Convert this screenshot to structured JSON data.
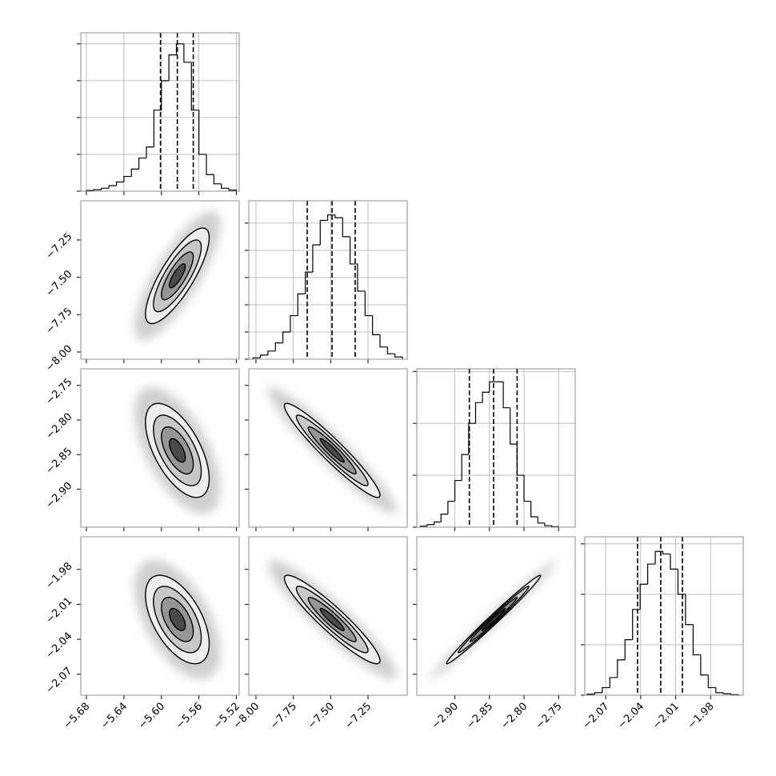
{
  "chart_data": [
    {
      "type": "histogram",
      "color": "#000000",
      "grid": true,
      "bins": [
        -5.68,
        -5.672,
        -5.664,
        -5.656,
        -5.648,
        -5.64,
        -5.632,
        -5.624,
        -5.616,
        -5.608,
        -5.6,
        -5.592,
        -5.584,
        -5.576,
        -5.568,
        -5.56,
        -5.552,
        -5.544,
        -5.536,
        -5.528,
        -5.52
      ],
      "values": [
        0.02,
        0.04,
        0.08,
        0.15,
        0.25,
        0.4,
        0.6,
        0.9,
        1.2,
        2.2,
        3.0,
        3.7,
        4.0,
        3.5,
        2.2,
        1.0,
        0.45,
        0.2,
        0.08,
        0.03
      ],
      "quantiles": [
        -5.601,
        -5.583,
        -5.566
      ],
      "xlim": [
        -5.686,
        -5.517
      ],
      "xticks": [
        -5.68,
        -5.64,
        -5.6,
        -5.56,
        -5.52
      ],
      "ylim": [
        0,
        4.3
      ],
      "yticks": [
        0,
        1,
        2,
        3,
        4
      ]
    },
    {
      "type": "contour",
      "color": "#000000",
      "fill_colors": [
        "#eeeeee",
        "#c8c8c8",
        "#969696",
        "#4a4a4a"
      ],
      "cloud_color": "#bbbbbb",
      "x_center": -5.583,
      "y_center": -7.49,
      "x_sd": 0.017,
      "y_sd": 0.16,
      "rho": 0.8,
      "levels": [
        2,
        1.5,
        1,
        0.5
      ],
      "xlim": [
        -5.686,
        -5.517
      ],
      "xticks": [
        -5.68,
        -5.64,
        -5.6,
        -5.56,
        -5.52
      ],
      "ylim": [
        -8.048,
        -6.988
      ],
      "yticks": [
        {
          "value": -8.0,
          "label": "−8.00"
        },
        {
          "value": -7.75,
          "label": "−7.75"
        },
        {
          "value": -7.5,
          "label": "−7.50"
        },
        {
          "value": -7.25,
          "label": "−7.25"
        }
      ]
    },
    {
      "type": "histogram",
      "color": "#000000",
      "grid": true,
      "bins": [
        -8.02,
        -7.97,
        -7.92,
        -7.87,
        -7.82,
        -7.77,
        -7.72,
        -7.67,
        -7.62,
        -7.57,
        -7.52,
        -7.47,
        -7.42,
        -7.37,
        -7.32,
        -7.27,
        -7.22,
        -7.17,
        -7.12,
        -7.07,
        -7.02
      ],
      "values": [
        0.05,
        0.15,
        0.3,
        0.6,
        1.0,
        1.6,
        2.4,
        3.2,
        4.2,
        5.1,
        5.3,
        5.2,
        4.5,
        3.5,
        2.5,
        1.6,
        0.9,
        0.45,
        0.2,
        0.08
      ],
      "quantiles": [
        -7.657,
        -7.491,
        -7.336
      ],
      "xlim": [
        -8.048,
        -6.988
      ],
      "xticks": [
        -8.0,
        -7.75,
        -7.5,
        -7.25
      ],
      "ylim": [
        0,
        5.82
      ],
      "yticks": [
        0,
        1,
        2,
        3,
        4,
        5
      ]
    },
    {
      "type": "contour",
      "color": "#000000",
      "fill_colors": [
        "#eeeeee",
        "#c8c8c8",
        "#969696",
        "#4a4a4a"
      ],
      "cloud_color": "#bbbbbb",
      "x_center": -5.583,
      "y_center": -2.844,
      "x_sd": 0.017,
      "y_sd": 0.034,
      "rho": -0.6,
      "levels": [
        2,
        1.5,
        1,
        0.5
      ],
      "xlim": [
        -5.686,
        -5.517
      ],
      "xticks": [
        -5.68,
        -5.64,
        -5.6,
        -5.56,
        -5.52
      ],
      "ylim": [
        -2.955,
        -2.726
      ],
      "yticks": [
        {
          "value": -2.9,
          "label": "−2.90"
        },
        {
          "value": -2.85,
          "label": "−2.85"
        },
        {
          "value": -2.8,
          "label": "−2.80"
        },
        {
          "value": -2.75,
          "label": "−2.75"
        }
      ]
    },
    {
      "type": "contour",
      "color": "#000000",
      "fill_colors": [
        "#eeeeee",
        "#c8c8c8",
        "#969696",
        "#4a4a4a"
      ],
      "cloud_color": "#bbbbbb",
      "x_center": -7.49,
      "y_center": -2.844,
      "x_sd": 0.16,
      "y_sd": 0.034,
      "rho": -0.95,
      "levels": [
        2,
        1.5,
        1,
        0.5
      ],
      "xlim": [
        -8.048,
        -6.988
      ],
      "xticks": [
        -8.0,
        -7.75,
        -7.5,
        -7.25
      ],
      "ylim": [
        -2.955,
        -2.726
      ],
      "yticks": [
        -2.9,
        -2.85,
        -2.8,
        -2.75
      ]
    },
    {
      "type": "histogram",
      "color": "#000000",
      "grid": true,
      "bins": [
        -2.95,
        -2.94,
        -2.93,
        -2.92,
        -2.91,
        -2.9,
        -2.89,
        -2.88,
        -2.87,
        -2.86,
        -2.85,
        -2.84,
        -2.83,
        -2.82,
        -2.81,
        -2.8,
        -2.79,
        -2.78,
        -2.77,
        -2.76,
        -2.75
      ],
      "values": [
        0.02,
        0.05,
        0.1,
        0.25,
        0.5,
        0.9,
        1.4,
        2.0,
        2.4,
        2.6,
        2.8,
        2.8,
        2.3,
        1.6,
        1.0,
        0.5,
        0.2,
        0.08,
        0.03,
        0.01
      ],
      "quantiles": [
        -2.879,
        -2.844,
        -2.81
      ],
      "xlim": [
        -2.955,
        -2.726
      ],
      "xticks": [
        -2.9,
        -2.85,
        -2.8,
        -2.75
      ],
      "ylim": [
        0,
        3.05
      ],
      "yticks": [
        0,
        1,
        2,
        3
      ]
    },
    {
      "type": "contour",
      "color": "#000000",
      "fill_colors": [
        "#eeeeee",
        "#c8c8c8",
        "#969696",
        "#4a4a4a"
      ],
      "cloud_color": "#bbbbbb",
      "x_center": -5.583,
      "y_center": -2.023,
      "x_sd": 0.017,
      "y_sd": 0.019,
      "rho": -0.55,
      "levels": [
        2,
        1.5,
        1,
        0.5
      ],
      "xlim": [
        -5.686,
        -5.517
      ],
      "xticks": [
        {
          "value": -5.68,
          "label": "−5.68"
        },
        {
          "value": -5.64,
          "label": "−5.64"
        },
        {
          "value": -5.6,
          "label": "−5.60"
        },
        {
          "value": -5.56,
          "label": "−5.56"
        },
        {
          "value": -5.52,
          "label": "−5.52"
        }
      ],
      "ylim": [
        -2.088,
        -1.952
      ],
      "yticks": [
        {
          "value": -2.07,
          "label": "−2.07"
        },
        {
          "value": -2.04,
          "label": "−2.04"
        },
        {
          "value": -2.01,
          "label": "−2.01"
        },
        {
          "value": -1.98,
          "label": "−1.98"
        }
      ]
    },
    {
      "type": "contour",
      "color": "#000000",
      "fill_colors": [
        "#eeeeee",
        "#c8c8c8",
        "#969696",
        "#4a4a4a"
      ],
      "cloud_color": "#bbbbbb",
      "x_center": -7.49,
      "y_center": -2.023,
      "x_sd": 0.16,
      "y_sd": 0.019,
      "rho": -0.93,
      "levels": [
        2,
        1.5,
        1,
        0.5
      ],
      "xlim": [
        -8.048,
        -6.988
      ],
      "xticks": [
        {
          "value": -8.0,
          "label": "−8.00"
        },
        {
          "value": -7.75,
          "label": "−7.75"
        },
        {
          "value": -7.5,
          "label": "−7.50"
        },
        {
          "value": -7.25,
          "label": "−7.25"
        }
      ],
      "ylim": [
        -2.088,
        -1.952
      ],
      "yticks": [
        -2.07,
        -2.04,
        -2.01,
        -1.98
      ]
    },
    {
      "type": "contour",
      "color": "#000000",
      "fill_colors": [
        "#eeeeee",
        "#c8c8c8",
        "#969696",
        "#4a4a4a"
      ],
      "cloud_color": "#bbbbbb",
      "x_center": -2.844,
      "y_center": -2.023,
      "x_sd": 0.034,
      "y_sd": 0.019,
      "rho": 0.99,
      "levels": [
        2,
        1.5,
        1,
        0.5
      ],
      "xlim": [
        -2.955,
        -2.726
      ],
      "xticks": [
        {
          "value": -2.9,
          "label": "−2.90"
        },
        {
          "value": -2.85,
          "label": "−2.85"
        },
        {
          "value": -2.8,
          "label": "−2.80"
        },
        {
          "value": -2.75,
          "label": "−2.75"
        }
      ],
      "ylim": [
        -2.088,
        -1.952
      ],
      "yticks": [
        -2.07,
        -2.04,
        -2.01,
        -1.98
      ]
    },
    {
      "type": "histogram",
      "color": "#000000",
      "grid": true,
      "bins": [
        -2.086,
        -2.0795,
        -2.073,
        -2.0665,
        -2.06,
        -2.0535,
        -2.047,
        -2.0405,
        -2.034,
        -2.0275,
        -2.021,
        -2.0145,
        -2.008,
        -2.0015,
        -1.995,
        -1.9885,
        -1.982,
        -1.9755,
        -1.969,
        -1.9625,
        -1.956
      ],
      "values": [
        0.02,
        0.05,
        0.15,
        0.35,
        0.7,
        1.1,
        1.7,
        2.2,
        2.6,
        2.85,
        2.8,
        2.5,
        2.0,
        1.4,
        0.8,
        0.4,
        0.15,
        0.05,
        0.03,
        0.01
      ],
      "quantiles": [
        -2.0427,
        -2.0228,
        -2.0042
      ],
      "xlim": [
        -2.088,
        -1.952
      ],
      "xticks": [
        {
          "value": -2.07,
          "label": "−2.07"
        },
        {
          "value": -2.04,
          "label": "−2.04"
        },
        {
          "value": -2.01,
          "label": "−2.01"
        },
        {
          "value": -1.98,
          "label": "−1.98"
        }
      ],
      "ylim": [
        0,
        3.14
      ],
      "yticks": [
        0,
        1,
        2,
        3
      ]
    }
  ]
}
